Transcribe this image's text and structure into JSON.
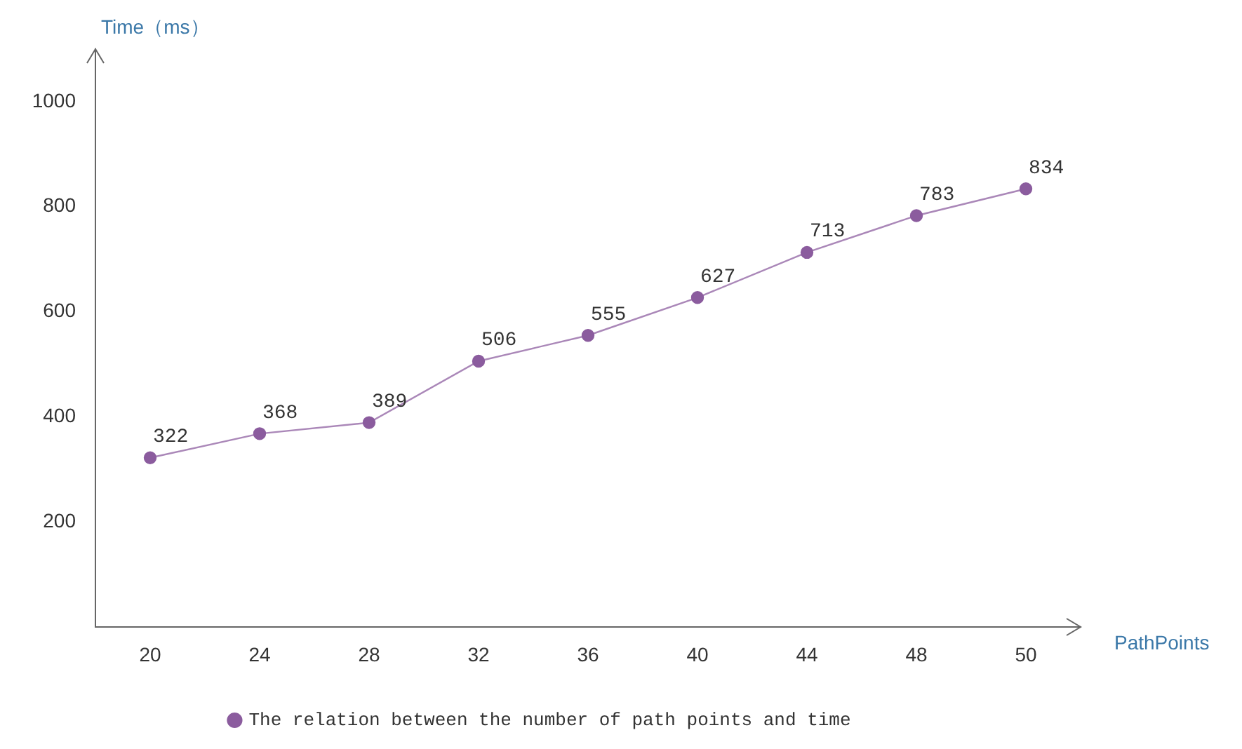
{
  "chart_data": {
    "type": "line",
    "xlabel": "PathPoints",
    "ylabel": "Time（ms）",
    "categories": [
      "20",
      "24",
      "28",
      "32",
      "36",
      "40",
      "44",
      "48",
      "50"
    ],
    "series": [
      {
        "name": "The relation between the number of path points and time",
        "color": "#8b5c9e",
        "values": [
          322,
          368,
          389,
          506,
          555,
          627,
          713,
          783,
          834
        ]
      }
    ],
    "ylim": [
      0,
      1100
    ],
    "yticks": [
      200,
      400,
      600,
      800,
      1000
    ],
    "data_labels": true,
    "legend": "bottom",
    "marker": "circle",
    "grid": false
  }
}
